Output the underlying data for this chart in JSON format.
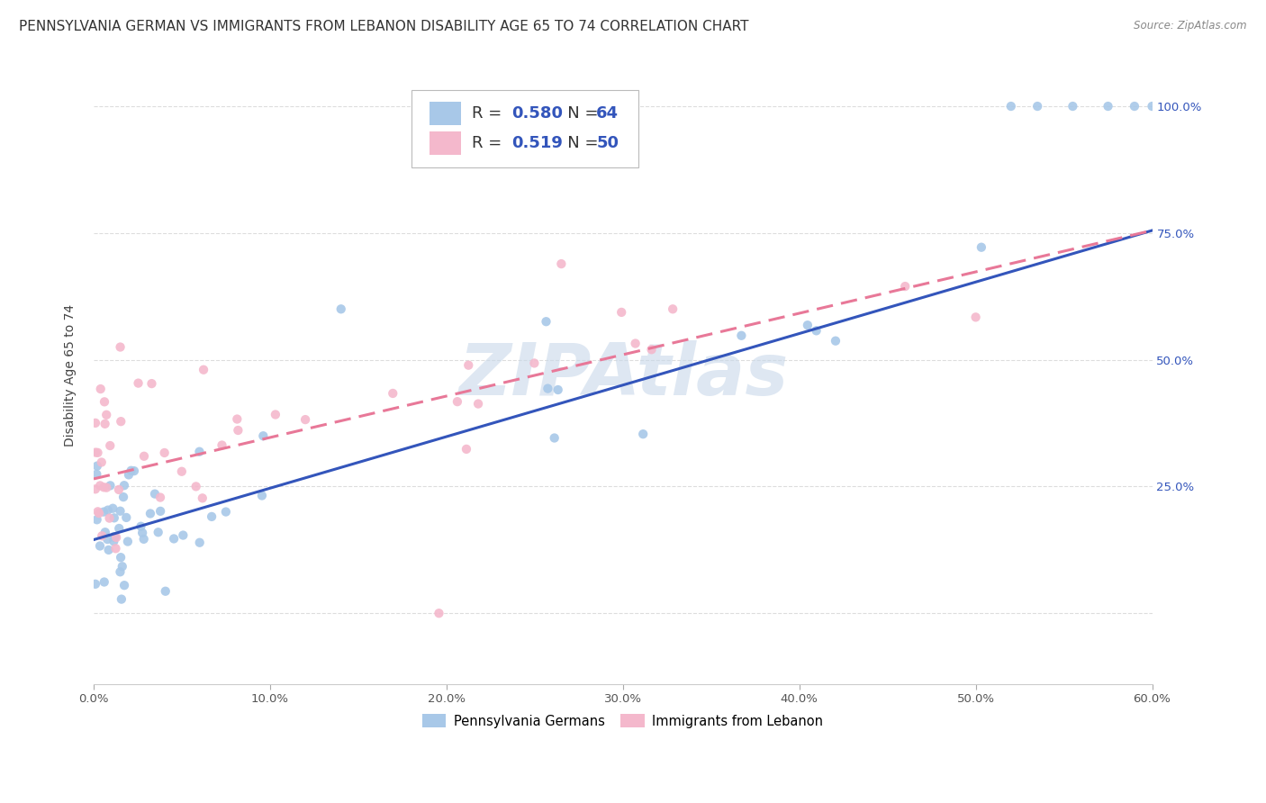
{
  "title": "PENNSYLVANIA GERMAN VS IMMIGRANTS FROM LEBANON DISABILITY AGE 65 TO 74 CORRELATION CHART",
  "source": "Source: ZipAtlas.com",
  "ylabel": "Disability Age 65 to 74",
  "x_tick_labels": [
    "0.0%",
    "",
    "",
    "",
    "",
    "",
    "",
    "",
    "",
    "",
    "10.0%",
    "",
    "",
    "",
    "",
    "",
    "",
    "",
    "",
    "",
    "20.0%",
    "",
    "",
    "",
    "",
    "",
    "",
    "",
    "",
    "",
    "30.0%",
    "",
    "",
    "",
    "",
    "",
    "",
    "",
    "",
    "",
    "40.0%",
    "",
    "",
    "",
    "",
    "",
    "",
    "",
    "",
    "",
    "50.0%",
    "",
    "",
    "",
    "",
    "",
    "",
    "",
    "",
    "",
    "60.0%"
  ],
  "xlim": [
    0.0,
    0.6
  ],
  "ylim": [
    -0.14,
    1.08
  ],
  "blue_R": "0.580",
  "blue_N": "64",
  "pink_R": "0.519",
  "pink_N": "50",
  "blue_color": "#a8c8e8",
  "pink_color": "#f4b8cc",
  "blue_line_color": "#3355bb",
  "pink_line_color": "#e87898",
  "legend_label_blue": "Pennsylvania Germans",
  "legend_label_pink": "Immigrants from Lebanon",
  "watermark": "ZIPAtlas",
  "watermark_color": "#c8d8ea",
  "blue_line_x0": 0.0,
  "blue_line_y0": 0.145,
  "blue_line_x1": 0.6,
  "blue_line_y1": 0.755,
  "pink_line_x0": 0.0,
  "pink_line_y0": 0.265,
  "pink_line_x1": 0.6,
  "pink_line_y1": 0.755,
  "background_color": "#ffffff",
  "grid_color": "#dddddd",
  "title_fontsize": 11,
  "axis_label_fontsize": 10,
  "tick_fontsize": 9.5,
  "right_tick_color": "#3355bb"
}
